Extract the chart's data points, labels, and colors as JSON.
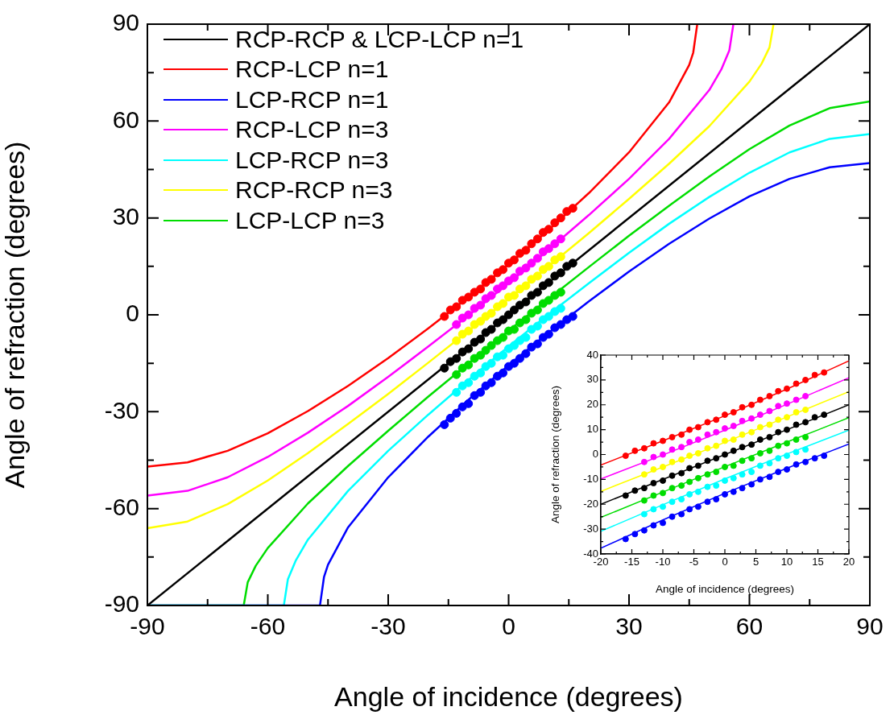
{
  "chart_data": [
    {
      "type": "line",
      "xlabel": "Angle of incidence (degrees)",
      "ylabel": "Angle of refraction (degrees)",
      "xlim": [
        -90,
        90
      ],
      "ylim": [
        -90,
        90
      ],
      "xticks": [
        -90,
        {
          "value": -75,
          "label": null
        },
        -60,
        {
          "value": -45,
          "label": null
        },
        -30,
        {
          "value": -15,
          "label": null
        },
        0,
        {
          "value": 15,
          "label": null
        },
        30,
        {
          "value": 45,
          "label": null
        },
        60,
        {
          "value": 75,
          "label": null
        },
        90
      ],
      "yticks": [
        -90,
        {
          "value": -75,
          "label": null
        },
        -60,
        {
          "value": -45,
          "label": null
        },
        -30,
        {
          "value": -15,
          "label": null
        },
        0,
        {
          "value": 15,
          "label": null
        },
        30,
        {
          "value": 45,
          "label": null
        },
        60,
        {
          "value": 75,
          "label": null
        },
        90
      ],
      "legend": "top left",
      "series": [
        {
          "name": "RCP-RCP & LCP-LCP n=1",
          "color": "#000000",
          "marker": "none",
          "x": [
            -90,
            90
          ],
          "values": [
            -90,
            90
          ]
        },
        {
          "name": "RCP-LCP n=1",
          "color": "#ff0000",
          "marker": "none",
          "x": [
            -90,
            -80,
            -70,
            -60,
            -50,
            -40,
            -30,
            -20,
            -10,
            0,
            10,
            20,
            30,
            40,
            45,
            46,
            47
          ],
          "values": [
            -47.0,
            -45.7,
            -42.1,
            -36.7,
            -29.8,
            -22.0,
            -13.4,
            -4.2,
            5.5,
            15.6,
            26.3,
            37.7,
            50.3,
            65.8,
            77.4,
            81.2,
            90
          ]
        },
        {
          "name": "LCP-RCP n=1",
          "color": "#0000ff",
          "marker": "none",
          "x": [
            -90,
            -47,
            -46,
            -45,
            -40,
            -30,
            -20,
            -10,
            0,
            10,
            20,
            30,
            40,
            50,
            60,
            70,
            80,
            90
          ],
          "values": [
            -90,
            -90,
            -81.2,
            -77.4,
            -65.8,
            -50.3,
            -37.7,
            -26.3,
            -15.6,
            -5.5,
            4.2,
            13.4,
            22.0,
            29.8,
            36.7,
            42.1,
            45.7,
            47.0
          ]
        },
        {
          "name": "RCP-LCP n=3",
          "color": "#ff00ff",
          "marker": "none",
          "x": [
            -90,
            -80,
            -70,
            -60,
            -50,
            -40,
            -30,
            -20,
            -10,
            0,
            10,
            20,
            30,
            40,
            50,
            53,
            55,
            56
          ],
          "values": [
            -56.0,
            -54.5,
            -50.3,
            -44.0,
            -36.5,
            -28.2,
            -19.2,
            -9.8,
            -0.2,
            9.8,
            20.2,
            30.9,
            42.1,
            54.5,
            69.6,
            76.0,
            81.9,
            90
          ]
        },
        {
          "name": "LCP-RCP n=3",
          "color": "#00ffff",
          "marker": "none",
          "x": [
            -90,
            -56,
            -55,
            -53,
            -50,
            -40,
            -30,
            -20,
            -10,
            0,
            10,
            20,
            30,
            40,
            50,
            60,
            70,
            80,
            90
          ],
          "values": [
            -90,
            -90,
            -81.9,
            -76.0,
            -69.6,
            -54.5,
            -42.1,
            -30.9,
            -20.2,
            -9.8,
            0.2,
            9.8,
            19.2,
            28.2,
            36.5,
            44.0,
            50.3,
            54.5,
            56.0
          ]
        },
        {
          "name": "RCP-RCP n=3",
          "color": "#ffff00",
          "marker": "none",
          "x": [
            -90,
            -80,
            -70,
            -60,
            -50,
            -40,
            -30,
            -20,
            -10,
            0,
            10,
            20,
            30,
            40,
            50,
            60,
            63,
            65,
            66
          ],
          "values": [
            -66.1,
            -64.0,
            -58.6,
            -51.3,
            -42.8,
            -33.8,
            -24.5,
            -14.8,
            -5.0,
            4.9,
            15.1,
            25.3,
            35.9,
            46.8,
            58.4,
            72.2,
            77.7,
            82.8,
            90
          ]
        },
        {
          "name": "LCP-LCP n=3",
          "color": "#00dd00",
          "marker": "none",
          "x": [
            -90,
            -66,
            -65,
            -63,
            -60,
            -50,
            -40,
            -30,
            -20,
            -10,
            0,
            10,
            20,
            30,
            40,
            50,
            60,
            70,
            80,
            90
          ],
          "values": [
            -90,
            -90,
            -82.8,
            -77.7,
            -72.2,
            -58.4,
            -46.8,
            -35.9,
            -25.3,
            -15.1,
            -4.9,
            5.0,
            14.8,
            24.5,
            33.8,
            42.8,
            51.3,
            58.6,
            64.0,
            66.1
          ]
        },
        {
          "type": "scatter",
          "color": "#ff0000",
          "marker": "circle",
          "x": [
            -16,
            -14.5,
            -13,
            -11.5,
            -10,
            -8.5,
            -7,
            -5.7,
            -4.3,
            -2.8,
            -1.4,
            0,
            1.4,
            2.8,
            4.3,
            5.7,
            7.2,
            8.6,
            10,
            11.5,
            13,
            14.5,
            16
          ],
          "values": [
            -0.5,
            1.5,
            2.5,
            4.5,
            5.5,
            7,
            8,
            10,
            11,
            13,
            14,
            16,
            17,
            19,
            20,
            22,
            23.5,
            25.5,
            26.5,
            28.5,
            30,
            32,
            33
          ]
        },
        {
          "type": "scatter",
          "color": "#ff00ff",
          "marker": "circle",
          "x": [
            -13,
            -11.5,
            -10,
            -8.5,
            -7,
            -5.7,
            -4.3,
            -2.8,
            -1.4,
            0,
            1.4,
            2.8,
            4.3,
            5.7,
            7.2,
            8.6,
            10,
            11.5,
            13
          ],
          "values": [
            -3,
            -1,
            0,
            2,
            3,
            5,
            6,
            8,
            9,
            10.5,
            11.5,
            13.5,
            14.5,
            16,
            17.5,
            19.5,
            20.5,
            22,
            23.5
          ]
        },
        {
          "type": "scatter",
          "color": "#ffff00",
          "marker": "circle",
          "x": [
            -13,
            -11.5,
            -10,
            -8.5,
            -7,
            -5.7,
            -4.3,
            -2.8,
            -1.4,
            0,
            1.4,
            2.8,
            4.3,
            5.7,
            7.2,
            8.6,
            10,
            11.5,
            13
          ],
          "values": [
            -8,
            -6,
            -5,
            -3,
            -2,
            -0.5,
            0.5,
            2.5,
            3.5,
            5.5,
            6,
            8,
            9,
            11,
            12,
            14,
            15,
            17,
            18
          ]
        },
        {
          "type": "scatter",
          "color": "#000000",
          "marker": "circle",
          "x": [
            -16,
            -14.5,
            -13,
            -11.5,
            -10,
            -8.5,
            -7,
            -5.7,
            -4.3,
            -2.8,
            -1.4,
            0,
            1.4,
            2.8,
            4.3,
            5.7,
            7.2,
            8.6,
            10,
            11.5,
            13,
            14.5,
            16
          ],
          "values": [
            -16.5,
            -14.5,
            -13.5,
            -11.5,
            -10.5,
            -8.5,
            -7.5,
            -5.5,
            -4.5,
            -2.5,
            -1.5,
            0,
            1.5,
            3,
            4,
            6,
            7,
            9,
            10,
            12,
            13,
            15,
            16
          ]
        },
        {
          "type": "scatter",
          "color": "#00dd00",
          "marker": "circle",
          "x": [
            -13,
            -11.5,
            -10,
            -8.5,
            -7,
            -5.7,
            -4.3,
            -2.8,
            -1.4,
            0,
            1.4,
            2.8,
            4.3,
            5.7,
            7.2,
            8.6,
            10,
            11.5,
            13
          ],
          "values": [
            -18.5,
            -16.5,
            -15.5,
            -13.5,
            -12.5,
            -11,
            -9.5,
            -8,
            -7,
            -5,
            -4.5,
            -2.5,
            -1.5,
            0.5,
            1.5,
            3.5,
            4.5,
            6,
            7
          ]
        },
        {
          "type": "scatter",
          "color": "#00ffff",
          "marker": "circle",
          "x": [
            -13,
            -11.5,
            -10,
            -8.5,
            -7,
            -5.7,
            -4.3,
            -2.8,
            -1.4,
            0,
            1.4,
            2.8,
            4.3,
            5.7,
            7.2,
            8.6,
            10,
            11.5,
            13
          ],
          "values": [
            -24,
            -22,
            -21,
            -19,
            -18,
            -16,
            -15,
            -13,
            -12.5,
            -10.5,
            -9.5,
            -8,
            -7,
            -4.5,
            -3.5,
            -1.5,
            -0.5,
            1,
            2
          ]
        },
        {
          "type": "scatter",
          "color": "#0000ff",
          "marker": "circle",
          "x": [
            -16,
            -14.5,
            -13,
            -11.5,
            -10,
            -8.5,
            -7,
            -5.7,
            -4.3,
            -2.8,
            -1.4,
            0,
            1.4,
            2.8,
            4.3,
            5.7,
            7.2,
            8.6,
            10,
            11.5,
            13,
            14.5,
            16
          ],
          "values": [
            -34,
            -32,
            -30.5,
            -28.5,
            -27.5,
            -25,
            -24,
            -22,
            -21,
            -19,
            -18,
            -16,
            -15,
            -13.5,
            -12,
            -10,
            -9,
            -7,
            -6,
            -4,
            -3,
            -1.5,
            -0.5
          ]
        }
      ]
    },
    {
      "type": "line",
      "xlabel": "Angle of incidence (degrees)",
      "ylabel": "Angle of refraction (degrees)",
      "xlim": [
        -20,
        20
      ],
      "ylim": [
        -40,
        40
      ],
      "xticks": [
        -20,
        {
          "value": -17.5,
          "label": null
        },
        -15,
        {
          "value": -12.5,
          "label": null
        },
        -10,
        {
          "value": -7.5,
          "label": null
        },
        -5,
        {
          "value": -2.5,
          "label": null
        },
        0,
        {
          "value": 2.5,
          "label": null
        },
        5,
        {
          "value": 7.5,
          "label": null
        },
        10,
        {
          "value": 12.5,
          "label": null
        },
        15,
        {
          "value": 17.5,
          "label": null
        },
        20
      ],
      "yticks": [
        -40,
        {
          "value": -35,
          "label": null
        },
        -30,
        {
          "value": -25,
          "label": null
        },
        -20,
        {
          "value": -15,
          "label": null
        },
        -10,
        {
          "value": -5,
          "label": null
        },
        0,
        {
          "value": 5,
          "label": null
        },
        10,
        {
          "value": 15,
          "label": null
        },
        20,
        {
          "value": 25,
          "label": null
        },
        30,
        {
          "value": 35,
          "label": null
        },
        40
      ],
      "series": [
        {
          "color": "#000000",
          "marker": "none",
          "x": [
            -20,
            20
          ],
          "values": [
            -20,
            20
          ]
        },
        {
          "color": "#ff0000",
          "marker": "none",
          "x": [
            -20,
            -10,
            0,
            10,
            20
          ],
          "values": [
            -4.2,
            5.5,
            15.6,
            26.3,
            37.7
          ]
        },
        {
          "color": "#0000ff",
          "marker": "none",
          "x": [
            -20,
            -10,
            0,
            10,
            20
          ],
          "values": [
            -37.7,
            -26.3,
            -15.6,
            -5.5,
            4.2
          ]
        },
        {
          "color": "#ff00ff",
          "marker": "none",
          "x": [
            -20,
            -10,
            0,
            10,
            20
          ],
          "values": [
            -9.8,
            -0.2,
            9.8,
            20.2,
            30.9
          ]
        },
        {
          "color": "#00ffff",
          "marker": "none",
          "x": [
            -20,
            -10,
            0,
            10,
            20
          ],
          "values": [
            -30.9,
            -20.2,
            -9.8,
            0.2,
            9.8
          ]
        },
        {
          "color": "#ffff00",
          "marker": "none",
          "x": [
            -20,
            -10,
            0,
            10,
            20
          ],
          "values": [
            -14.8,
            -5.0,
            4.9,
            15.1,
            25.3
          ]
        },
        {
          "color": "#00dd00",
          "marker": "none",
          "x": [
            -20,
            -10,
            0,
            10,
            20
          ],
          "values": [
            -25.3,
            -15.1,
            -4.9,
            5.0,
            14.8
          ]
        },
        {
          "type": "scatter",
          "color": "#ff0000",
          "marker": "circle",
          "x": [
            -16,
            -14.5,
            -13,
            -11.5,
            -10,
            -8.5,
            -7,
            -5.7,
            -4.3,
            -2.8,
            -1.4,
            0,
            1.4,
            2.8,
            4.3,
            5.7,
            7.2,
            8.6,
            10,
            11.5,
            13,
            14.5,
            16
          ],
          "values": [
            -0.5,
            1.5,
            2.5,
            4.5,
            5.5,
            7,
            8,
            10,
            11,
            13,
            14,
            16,
            17,
            19,
            20,
            22,
            23.5,
            25.5,
            26.5,
            28.5,
            30,
            32,
            33
          ]
        },
        {
          "type": "scatter",
          "color": "#ff00ff",
          "marker": "circle",
          "x": [
            -13,
            -11.5,
            -10,
            -8.5,
            -7,
            -5.7,
            -4.3,
            -2.8,
            -1.4,
            0,
            1.4,
            2.8,
            4.3,
            5.7,
            7.2,
            8.6,
            10,
            11.5,
            13
          ],
          "values": [
            -3,
            -1,
            0,
            2,
            3,
            5,
            6,
            8,
            9,
            10.5,
            11.5,
            13.5,
            14.5,
            16,
            17.5,
            19.5,
            20.5,
            22,
            23.5
          ]
        },
        {
          "type": "scatter",
          "color": "#ffff00",
          "marker": "circle",
          "x": [
            -13,
            -11.5,
            -10,
            -8.5,
            -7,
            -5.7,
            -4.3,
            -2.8,
            -1.4,
            0,
            1.4,
            2.8,
            4.3,
            5.7,
            7.2,
            8.6,
            10,
            11.5,
            13
          ],
          "values": [
            -8,
            -6,
            -5,
            -3,
            -2,
            -0.5,
            0.5,
            2.5,
            3.5,
            5.5,
            6,
            8,
            9,
            11,
            12,
            14,
            15,
            17,
            18
          ]
        },
        {
          "type": "scatter",
          "color": "#000000",
          "marker": "circle",
          "x": [
            -16,
            -14.5,
            -13,
            -11.5,
            -10,
            -8.5,
            -7,
            -5.7,
            -4.3,
            -2.8,
            -1.4,
            0,
            1.4,
            2.8,
            4.3,
            5.7,
            7.2,
            8.6,
            10,
            11.5,
            13,
            14.5,
            16
          ],
          "values": [
            -16.5,
            -14.5,
            -13.5,
            -11.5,
            -10.5,
            -8.5,
            -7.5,
            -5.5,
            -4.5,
            -2.5,
            -1.5,
            0,
            1.5,
            3,
            4,
            6,
            7,
            9,
            10,
            12,
            13,
            15,
            16
          ]
        },
        {
          "type": "scatter",
          "color": "#00dd00",
          "marker": "circle",
          "x": [
            -13,
            -11.5,
            -10,
            -8.5,
            -7,
            -5.7,
            -4.3,
            -2.8,
            -1.4,
            0,
            1.4,
            2.8,
            4.3,
            5.7,
            7.2,
            8.6,
            10,
            11.5,
            13
          ],
          "values": [
            -18.5,
            -16.5,
            -15.5,
            -13.5,
            -12.5,
            -11,
            -9.5,
            -8,
            -7,
            -5,
            -4.5,
            -2.5,
            -1.5,
            0.5,
            1.5,
            3.5,
            4.5,
            6,
            7
          ]
        },
        {
          "type": "scatter",
          "color": "#00ffff",
          "marker": "circle",
          "x": [
            -13,
            -11.5,
            -10,
            -8.5,
            -7,
            -5.7,
            -4.3,
            -2.8,
            -1.4,
            0,
            1.4,
            2.8,
            4.3,
            5.7,
            7.2,
            8.6,
            10,
            11.5,
            13
          ],
          "values": [
            -24,
            -22,
            -21,
            -19,
            -18,
            -16,
            -15,
            -13,
            -12.5,
            -10.5,
            -9.5,
            -8,
            -7,
            -4.5,
            -3.5,
            -1.5,
            -0.5,
            1,
            2
          ]
        },
        {
          "type": "scatter",
          "color": "#0000ff",
          "marker": "circle",
          "x": [
            -16,
            -14.5,
            -13,
            -11.5,
            -10,
            -8.5,
            -7,
            -5.7,
            -4.3,
            -2.8,
            -1.4,
            0,
            1.4,
            2.8,
            4.3,
            5.7,
            7.2,
            8.6,
            10,
            11.5,
            13,
            14.5,
            16
          ],
          "values": [
            -34,
            -32,
            -30.5,
            -28.5,
            -27.5,
            -25,
            -24,
            -22,
            -21,
            -19,
            -18,
            -16,
            -15,
            -13.5,
            -12,
            -10,
            -9,
            -7,
            -6,
            -4,
            -3,
            -1.5,
            -0.5
          ]
        }
      ]
    }
  ]
}
